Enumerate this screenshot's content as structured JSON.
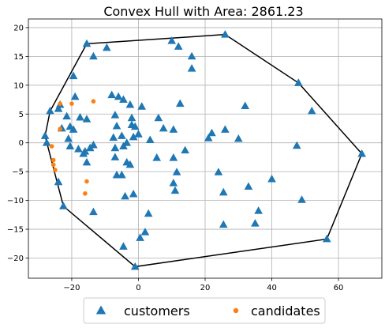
{
  "chart_data": {
    "type": "scatter",
    "title": "Convex Hull with Area: 2861.23",
    "xlabel": "",
    "ylabel": "",
    "xlim": [
      -33,
      73
    ],
    "ylim": [
      -23.5,
      21.5
    ],
    "xticks": [
      -20,
      0,
      20,
      40,
      60
    ],
    "yticks": [
      -20,
      -15,
      -10,
      -5,
      0,
      5,
      10,
      15,
      20
    ],
    "grid": true,
    "legend": {
      "placement": "bottom-center",
      "entries": [
        "customers",
        "candidates"
      ]
    },
    "colors": {
      "customers": "#1f77b4",
      "candidates": "#ff7f0e",
      "hull": "#000000"
    },
    "series": [
      {
        "name": "customers",
        "marker": "triangle",
        "points": [
          [
            -15.5,
            17.2
          ],
          [
            -9.5,
            16.5
          ],
          [
            -13.5,
            15.0
          ],
          [
            10.0,
            17.7
          ],
          [
            12.0,
            16.7
          ],
          [
            26.0,
            18.8
          ],
          [
            16.0,
            15.0
          ],
          [
            16.0,
            12.9
          ],
          [
            -19.5,
            11.6
          ],
          [
            48.0,
            10.4
          ],
          [
            -19.0,
            8.0
          ],
          [
            -8.0,
            8.3
          ],
          [
            -6.0,
            8.0
          ],
          [
            -4.5,
            7.5
          ],
          [
            -2.5,
            6.6
          ],
          [
            1.0,
            6.3
          ],
          [
            12.5,
            6.8
          ],
          [
            32.0,
            6.4
          ],
          [
            52.0,
            5.5
          ],
          [
            -26.5,
            5.5
          ],
          [
            -24.0,
            5.9
          ],
          [
            -23.5,
            6.6
          ],
          [
            -21.5,
            4.6
          ],
          [
            -17.5,
            4.4
          ],
          [
            -15.5,
            4.1
          ],
          [
            -7.0,
            4.8
          ],
          [
            -2.0,
            4.3
          ],
          [
            6.0,
            4.3
          ],
          [
            -20.5,
            2.8
          ],
          [
            -23.0,
            2.5
          ],
          [
            -19.5,
            2.3
          ],
          [
            -6.5,
            2.9
          ],
          [
            -2.0,
            3.1
          ],
          [
            -1.0,
            2.8
          ],
          [
            7.5,
            2.5
          ],
          [
            10.5,
            2.3
          ],
          [
            22.0,
            1.7
          ],
          [
            26.0,
            2.3
          ],
          [
            -28.0,
            1.2
          ],
          [
            -7.5,
            0.9
          ],
          [
            -5.0,
            1.2
          ],
          [
            -1.5,
            1.0
          ],
          [
            0.0,
            1.5
          ],
          [
            3.5,
            0.5
          ],
          [
            21.0,
            0.8
          ],
          [
            30.0,
            0.7
          ],
          [
            -27.5,
            0.0
          ],
          [
            -21.0,
            0.7
          ],
          [
            -20.5,
            -0.6
          ],
          [
            -18.0,
            -1.1
          ],
          [
            -16.0,
            -1.5
          ],
          [
            -14.5,
            -0.9
          ],
          [
            -13.5,
            -0.4
          ],
          [
            -7.0,
            -0.9
          ],
          [
            -4.5,
            -0.6
          ],
          [
            -3.5,
            0.0
          ],
          [
            14.0,
            -1.3
          ],
          [
            47.5,
            -0.5
          ],
          [
            67.0,
            -1.9
          ],
          [
            -16.5,
            -1.9
          ],
          [
            -7.0,
            -2.5
          ],
          [
            5.5,
            -2.6
          ],
          [
            10.5,
            -2.6
          ],
          [
            -15.5,
            -3.4
          ],
          [
            -3.5,
            -3.4
          ],
          [
            -2.5,
            -3.8
          ],
          [
            11.5,
            -5.1
          ],
          [
            24.0,
            -5.1
          ],
          [
            -6.5,
            -5.6
          ],
          [
            -5.0,
            -5.6
          ],
          [
            -24.0,
            -6.8
          ],
          [
            10.5,
            -7.0
          ],
          [
            33.0,
            -7.6
          ],
          [
            40.0,
            -6.3
          ],
          [
            11.0,
            -8.3
          ],
          [
            25.5,
            -8.6
          ],
          [
            -4.0,
            -9.3
          ],
          [
            -1.5,
            -8.9
          ],
          [
            49.0,
            -9.9
          ],
          [
            -22.5,
            -11.0
          ],
          [
            -13.5,
            -12.0
          ],
          [
            3.0,
            -12.3
          ],
          [
            36.0,
            -11.8
          ],
          [
            25.5,
            -14.2
          ],
          [
            35.0,
            -14.0
          ],
          [
            2.0,
            -15.5
          ],
          [
            0.5,
            -16.5
          ],
          [
            56.5,
            -16.7
          ],
          [
            -4.5,
            -18.0
          ],
          [
            -1.0,
            -21.5
          ]
        ]
      },
      {
        "name": "candidates",
        "marker": "circle",
        "points": [
          [
            -23.5,
            6.8
          ],
          [
            -20.0,
            6.8
          ],
          [
            -13.5,
            7.2
          ],
          [
            -23.5,
            2.4
          ],
          [
            -26.0,
            -0.6
          ],
          [
            -25.5,
            -3.0
          ],
          [
            -25.5,
            -3.8
          ],
          [
            -25.0,
            -4.7
          ],
          [
            -15.5,
            -6.7
          ],
          [
            -16.0,
            -8.8
          ]
        ]
      }
    ],
    "hull": [
      [
        -15.5,
        17.2
      ],
      [
        26.0,
        18.8
      ],
      [
        48.0,
        10.4
      ],
      [
        67.0,
        -1.9
      ],
      [
        56.5,
        -16.7
      ],
      [
        -1.0,
        -21.5
      ],
      [
        -22.5,
        -11.0
      ],
      [
        -28.0,
        1.2
      ],
      [
        -26.5,
        5.5
      ]
    ]
  }
}
